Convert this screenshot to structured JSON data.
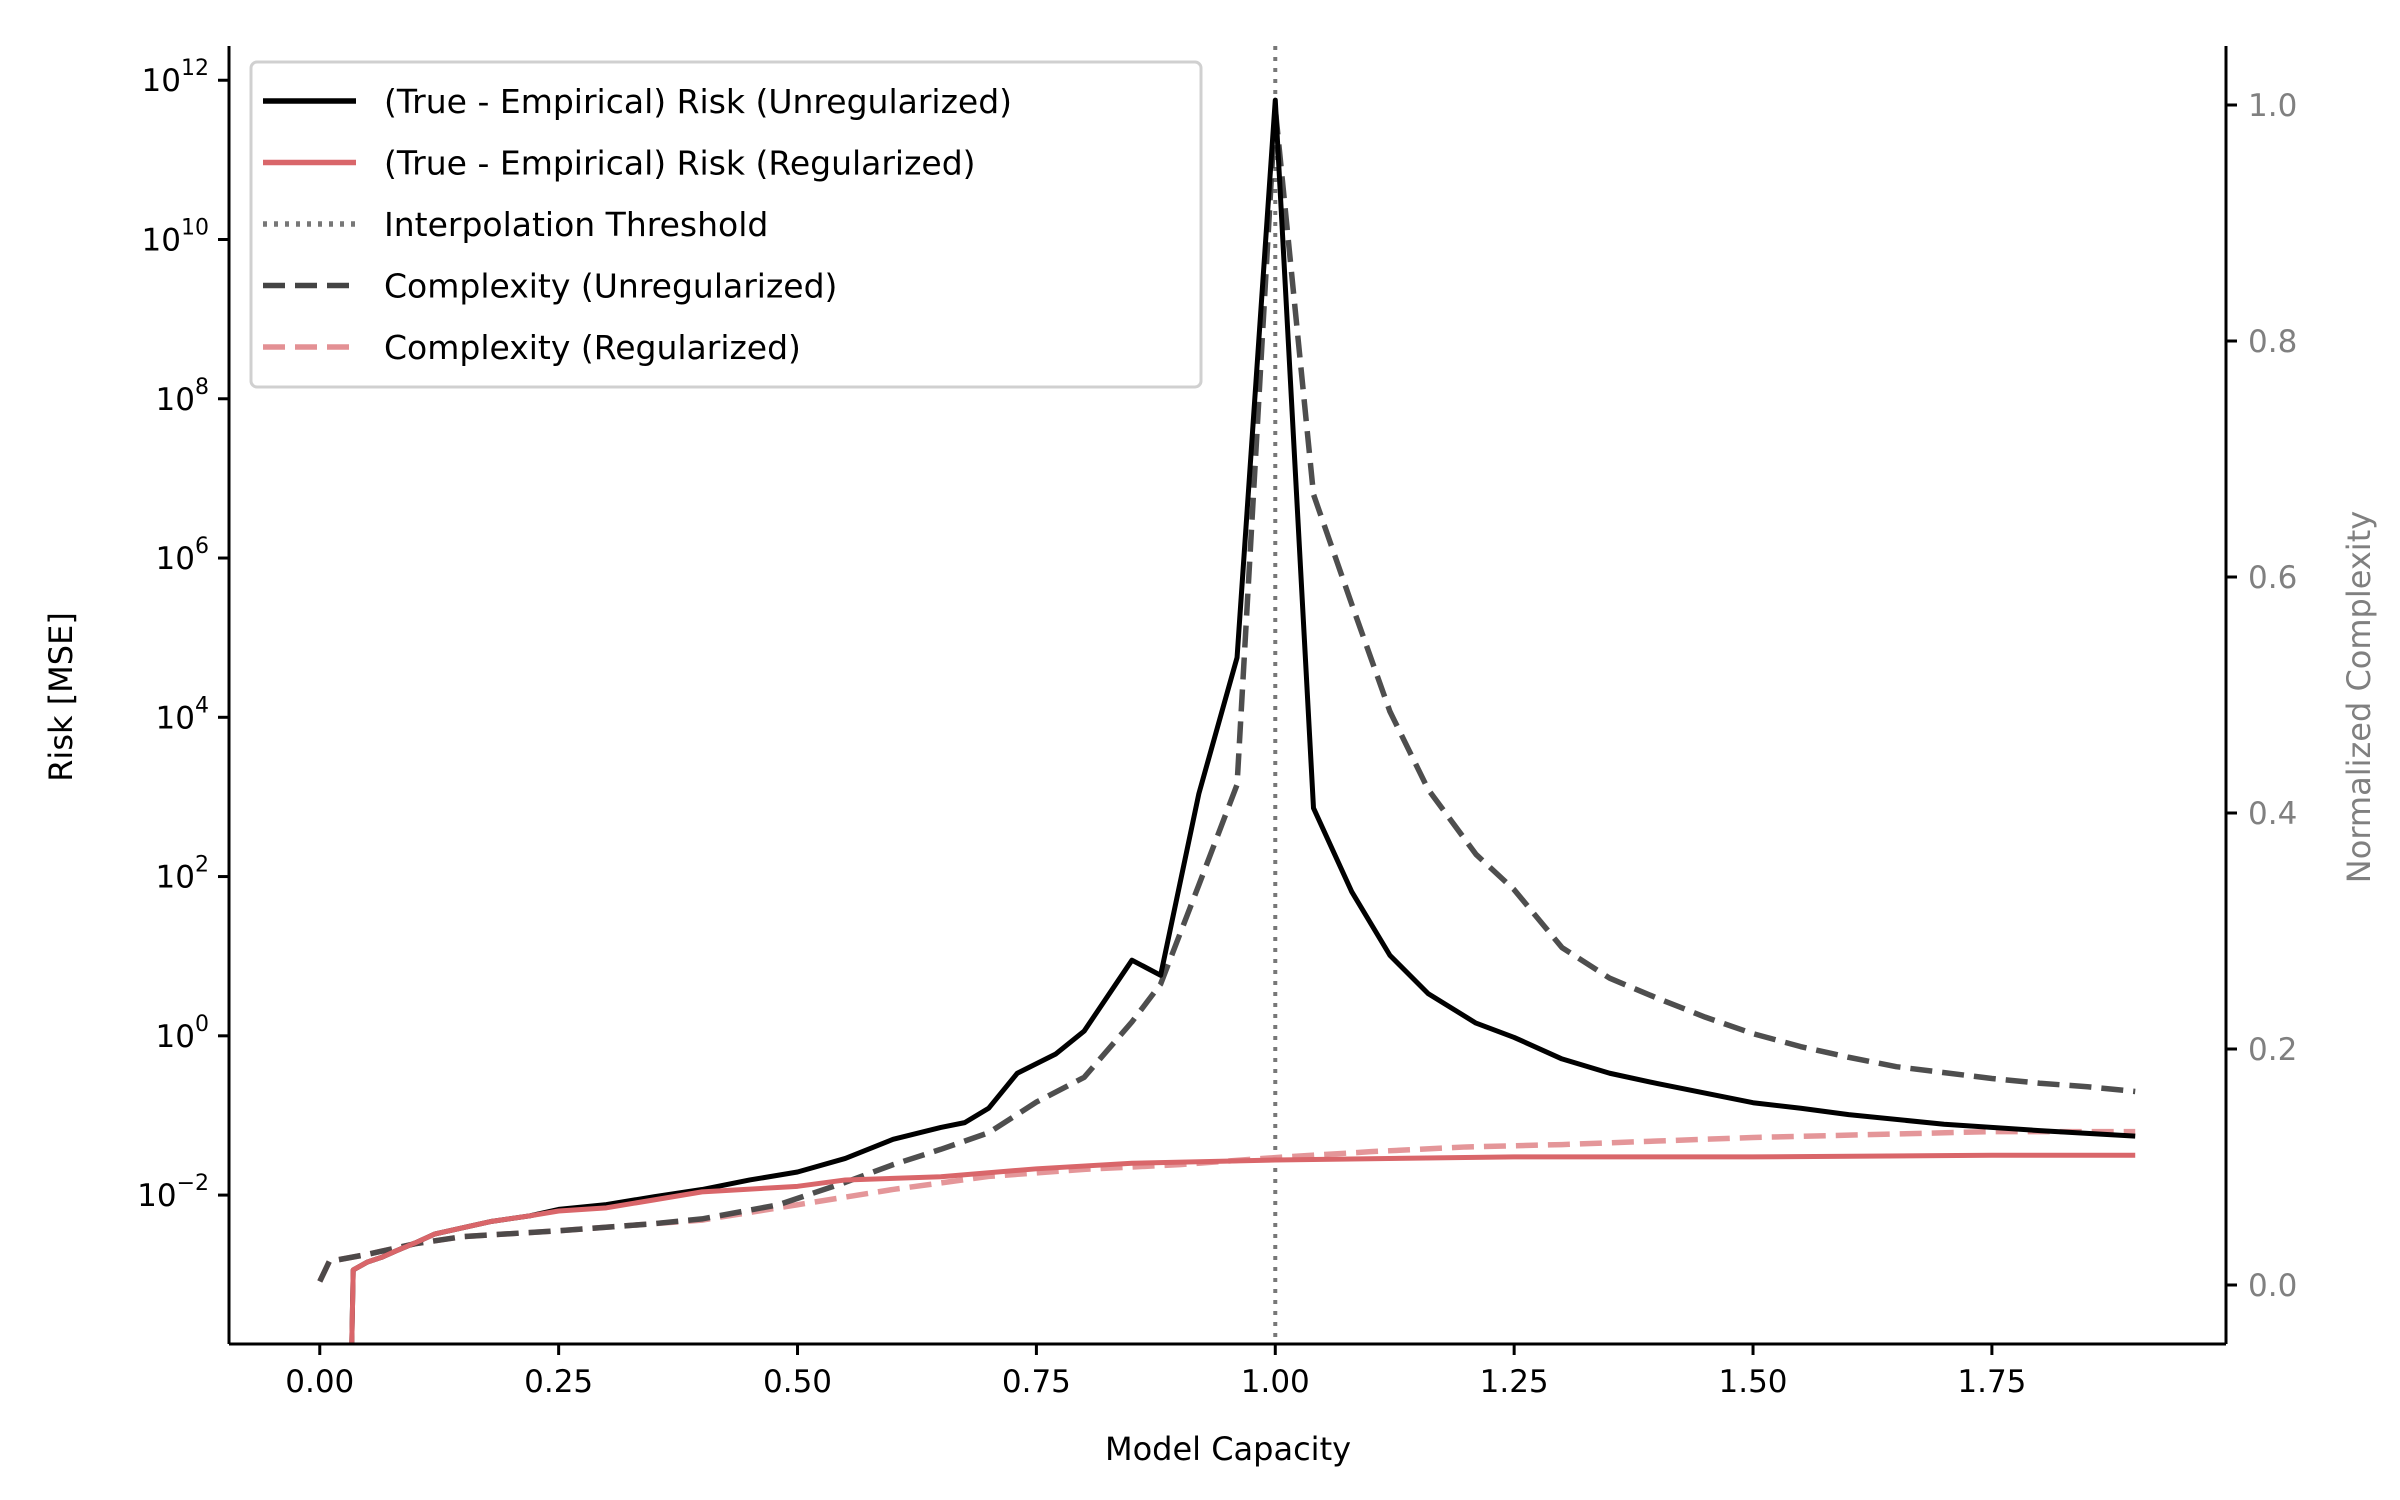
{
  "chart_data": {
    "type": "line",
    "xlabel": "Model Capacity",
    "ylabel": "Risk [MSE]",
    "ylabel_right": "Normalized Complexity",
    "xlim": [
      -0.095,
      1.995
    ],
    "ylim_log10": [
      -3.87,
      12.43
    ],
    "yscale": "log",
    "ylim_right": [
      -0.05,
      1.05
    ],
    "xticks": [
      "0.00",
      "0.25",
      "0.50",
      "0.75",
      "1.00",
      "1.25",
      "1.50",
      "1.75"
    ],
    "yticks_exp": [
      "-2",
      "0",
      "2",
      "4",
      "6",
      "8",
      "10",
      "12"
    ],
    "yticks_base": "10",
    "yticks_right": [
      "0.0",
      "0.2",
      "0.4",
      "0.6",
      "0.8",
      "1.0"
    ],
    "grid": false,
    "legend_position": "top-left",
    "colors": {
      "black": "#000000",
      "red": "#d9666a",
      "dark": "#444444",
      "lightred": "#e39094",
      "threshold": "#777777",
      "right_axis": "#808080"
    },
    "threshold_x": 1.0,
    "series": [
      {
        "name": "(True - Empirical) Risk (Unregularized)",
        "axis": "left",
        "style": "solid",
        "color": "#000000",
        "x": [
          0.03,
          0.035,
          0.05,
          0.065,
          0.08,
          0.1,
          0.12,
          0.15,
          0.18,
          0.22,
          0.25,
          0.3,
          0.35,
          0.4,
          0.45,
          0.5,
          0.55,
          0.6,
          0.65,
          0.675,
          0.7,
          0.73,
          0.77,
          0.8,
          0.85,
          0.88,
          0.92,
          0.96,
          1.0,
          1.04,
          1.08,
          1.12,
          1.16,
          1.21,
          1.25,
          1.3,
          1.35,
          1.4,
          1.5,
          1.55,
          1.6,
          1.7,
          1.8,
          1.9
        ],
        "log10_y": [
          -6,
          -2.94,
          -2.84,
          -2.78,
          -2.7,
          -2.6,
          -2.49,
          -2.41,
          -2.33,
          -2.26,
          -2.18,
          -2.12,
          -2.02,
          -1.93,
          -1.81,
          -1.71,
          -1.54,
          -1.3,
          -1.15,
          -1.09,
          -0.91,
          -0.47,
          -0.23,
          0.06,
          0.95,
          0.76,
          3.04,
          4.75,
          11.75,
          2.86,
          1.81,
          1.01,
          0.53,
          0.16,
          -0.02,
          -0.29,
          -0.47,
          -0.6,
          -0.84,
          -0.91,
          -0.99,
          -1.11,
          -1.19,
          -1.26
        ]
      },
      {
        "name": "(True - Empirical) Risk (Regularized)",
        "axis": "left",
        "style": "solid",
        "color": "#d9666a",
        "x": [
          0.03,
          0.035,
          0.05,
          0.065,
          0.08,
          0.1,
          0.12,
          0.15,
          0.18,
          0.22,
          0.25,
          0.3,
          0.35,
          0.4,
          0.5,
          0.55,
          0.65,
          0.75,
          0.85,
          1.0,
          1.25,
          1.5,
          1.75,
          1.9
        ],
        "log10_y": [
          -6,
          -2.94,
          -2.84,
          -2.78,
          -2.7,
          -2.6,
          -2.49,
          -2.41,
          -2.33,
          -2.26,
          -2.2,
          -2.16,
          -2.06,
          -1.96,
          -1.89,
          -1.81,
          -1.77,
          -1.67,
          -1.6,
          -1.56,
          -1.52,
          -1.52,
          -1.5,
          -1.5
        ]
      },
      {
        "name": "Complexity (Unregularized)",
        "axis": "right",
        "style": "dashed",
        "color": "#444444",
        "x": [
          0,
          0.01,
          0.05,
          0.1,
          0.15,
          0.25,
          0.35,
          0.4,
          0.48,
          0.55,
          0.6,
          0.65,
          0.7,
          0.75,
          0.8,
          0.85,
          0.88,
          0.92,
          0.96,
          1.0,
          1.04,
          1.08,
          1.12,
          1.16,
          1.21,
          1.25,
          1.3,
          1.35,
          1.4,
          1.45,
          1.5,
          1.55,
          1.6,
          1.65,
          1.7,
          1.75,
          1.8,
          1.85,
          1.9
        ],
        "y": [
          0.003,
          0.02,
          0.026,
          0.035,
          0.041,
          0.046,
          0.052,
          0.056,
          0.068,
          0.087,
          0.102,
          0.115,
          0.129,
          0.155,
          0.176,
          0.223,
          0.255,
          0.339,
          0.424,
          0.997,
          0.67,
          0.577,
          0.486,
          0.42,
          0.365,
          0.335,
          0.286,
          0.26,
          0.243,
          0.227,
          0.213,
          0.202,
          0.193,
          0.185,
          0.18,
          0.175,
          0.171,
          0.168,
          0.164
        ]
      },
      {
        "name": "Complexity (Regularized)",
        "axis": "right",
        "style": "dashed",
        "color": "#e39094",
        "x": [
          0,
          0.01,
          0.05,
          0.1,
          0.15,
          0.25,
          0.4,
          0.5,
          0.6,
          0.7,
          0.8,
          0.9,
          1.0,
          1.1,
          1.2,
          1.3,
          1.4,
          1.5,
          1.6,
          1.75,
          1.9
        ],
        "y": [
          0.003,
          0.02,
          0.026,
          0.035,
          0.041,
          0.046,
          0.055,
          0.068,
          0.081,
          0.092,
          0.098,
          0.102,
          0.108,
          0.113,
          0.117,
          0.119,
          0.122,
          0.125,
          0.127,
          0.13,
          0.13
        ]
      }
    ],
    "legend": [
      {
        "label": "(True - Empirical) Risk (Unregularized)",
        "style": "solid",
        "color": "#000000"
      },
      {
        "label": "(True - Empirical) Risk (Regularized)",
        "style": "solid",
        "color": "#d9666a"
      },
      {
        "label": "Interpolation Threshold",
        "style": "dotted",
        "color": "#777777"
      },
      {
        "label": "Complexity (Unregularized)",
        "style": "dashed",
        "color": "#444444"
      },
      {
        "label": "Complexity (Regularized)",
        "style": "dashed",
        "color": "#e39094"
      }
    ]
  }
}
